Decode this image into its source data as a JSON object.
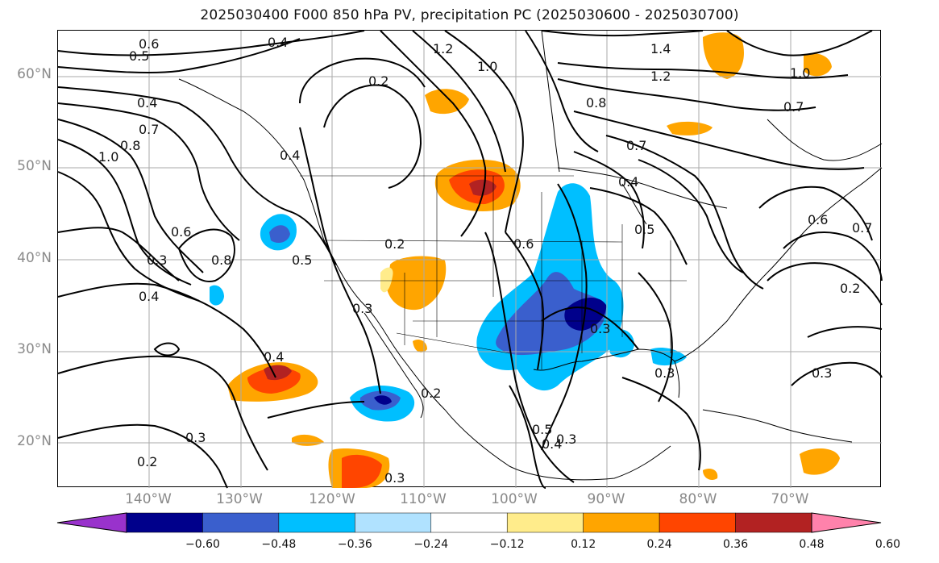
{
  "title": "2025030400 F000 850 hPa PV, precipitation PC (2025030600 - 2025030700)",
  "lat_labels": [
    "60°N",
    "50°N",
    "40°N",
    "30°N",
    "20°N"
  ],
  "lon_labels": [
    "140°W",
    "130°W",
    "120°W",
    "110°W",
    "100°W",
    "90°W",
    "80°W",
    "70°W"
  ],
  "colorbar": {
    "ticks": [
      "−0.60",
      "−0.48",
      "−0.36",
      "−0.24",
      "−0.12",
      "0.12",
      "0.24",
      "0.36",
      "0.48",
      "0.60"
    ],
    "colors": [
      "#9932cc",
      "#00008b",
      "#3a5fcd",
      "#00bfff",
      "#b0e2ff",
      "#ffffff",
      "#ffec8b",
      "#ffa500",
      "#ff4500",
      "#b22222",
      "#ff82ab"
    ]
  },
  "contour_labels": [
    "0.6",
    "0.5",
    "0.4",
    "1.2",
    "1.0",
    "1.4",
    "1.2",
    "1.0",
    "0.2",
    "0.4",
    "0.7",
    "0.8",
    "1.0",
    "0.8",
    "0.7",
    "0.4",
    "0.6",
    "0.8",
    "0.3",
    "0.4",
    "0.5",
    "0.3",
    "0.2",
    "0.6",
    "0.4",
    "0.5",
    "0.7",
    "0.6",
    "0.7",
    "0.2",
    "0.3",
    "0.4",
    "0.2",
    "0.3",
    "0.5",
    "0.4",
    "0.3",
    "0.3",
    "0.2",
    "0.3",
    "0.3"
  ]
}
